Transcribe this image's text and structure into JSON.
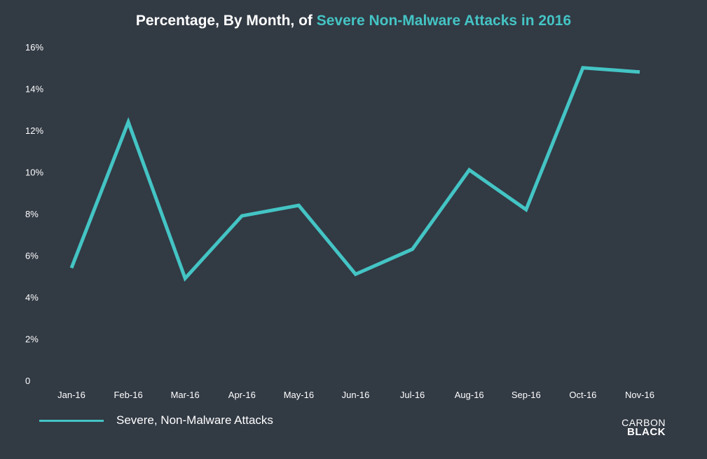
{
  "title": {
    "prefix": "Percentage, By Month, of",
    "highlight": "Severe Non-Malware Attacks in 2016"
  },
  "logo": {
    "line1": "CARBON",
    "line2": "BLACK"
  },
  "colors": {
    "background": "#323a44",
    "accent": "#44c4c4",
    "text": "#ffffff"
  },
  "chart_data": {
    "type": "line",
    "title": "Percentage, By Month, of Severe Non-Malware Attacks in 2016",
    "xlabel": "",
    "ylabel": "",
    "categories": [
      "Jan-16",
      "Feb-16",
      "Mar-16",
      "Apr-16",
      "May-16",
      "Jun-16",
      "Jul-16",
      "Aug-16",
      "Sep-16",
      "Oct-16",
      "Nov-16"
    ],
    "series": [
      {
        "name": "Severe, Non-Malware Attacks",
        "values": [
          5.4,
          12.4,
          4.9,
          7.9,
          8.4,
          5.1,
          6.3,
          10.1,
          8.2,
          15.0,
          14.8
        ]
      }
    ],
    "ylim": [
      0,
      16
    ],
    "yticks": [
      "0",
      "2%",
      "4%",
      "6%",
      "8%",
      "10%",
      "12%",
      "14%",
      "16%"
    ],
    "grid": false,
    "legend_position": "bottom-left"
  }
}
